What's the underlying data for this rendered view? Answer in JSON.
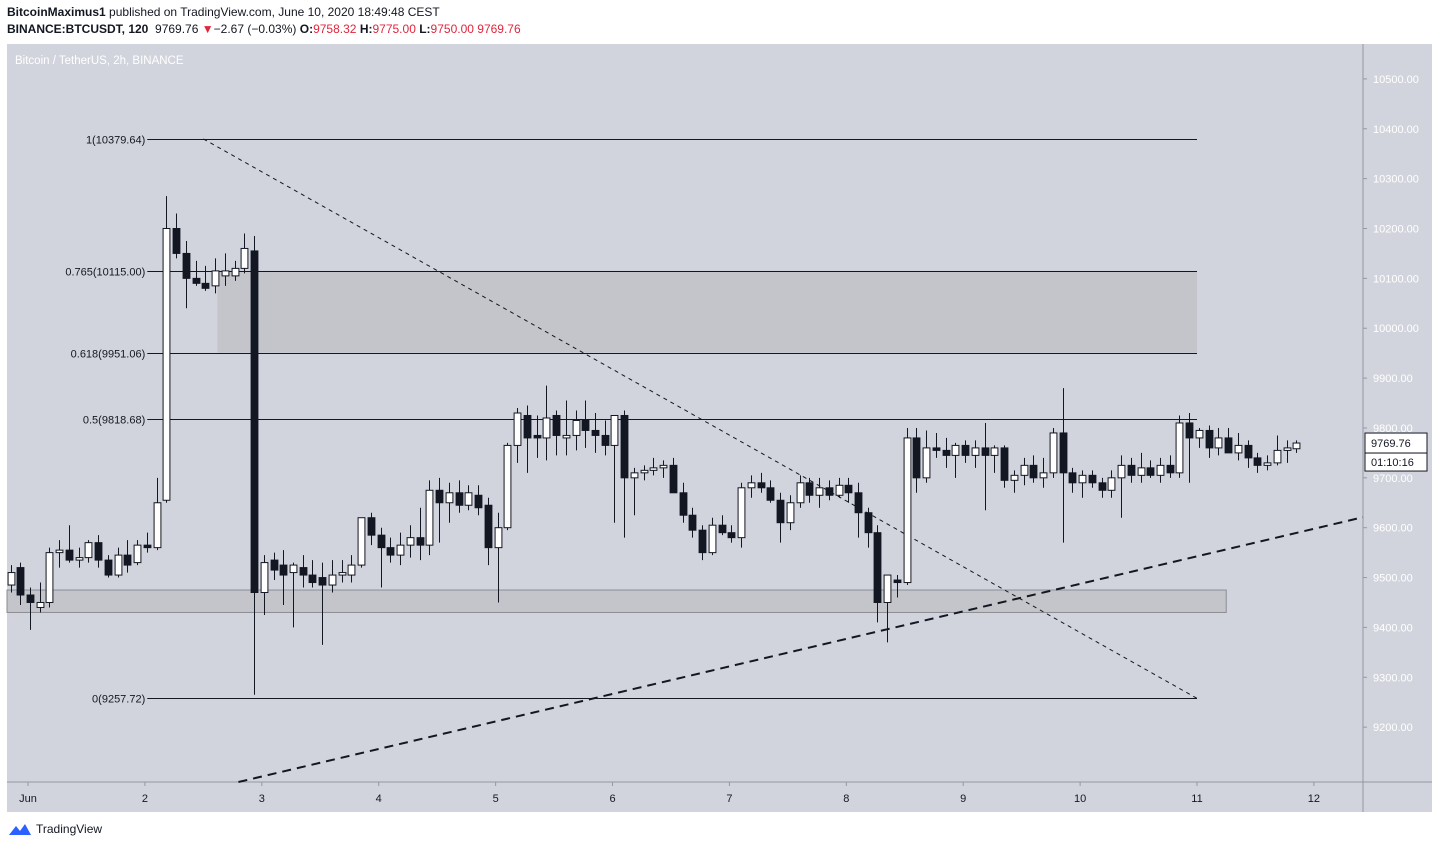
{
  "header": {
    "author": "BitcoinMaximus1",
    "published_text": "published on TradingView.com, June 10, 2020 18:49:48 CEST",
    "symbol": "BINANCE:BTCUSDT, 120",
    "last": "9769.76",
    "change_arrow": "▼",
    "change": "−2.67 (−0.03%)",
    "o_label": "O:",
    "o_value": "9758.32",
    "h_label": "H:",
    "h_value": "9775.00",
    "l_label": "L:",
    "l_value": "9750.00",
    "c_value": "9769.76"
  },
  "footer": {
    "brand": "TradingView"
  },
  "colors": {
    "panel_bg": "#d1d4dc",
    "zone_fill": "#c3c5cb",
    "candle_up_fill": "#ffffff",
    "candle_down_fill": "#131722",
    "price_change_red": "#e0263c",
    "accent_blue": "#2962ff"
  },
  "chart_data": {
    "type": "candlestick",
    "title": "Bitcoin / TetherUS, 2h, BINANCE",
    "price_axis": {
      "range": [
        9090,
        10570
      ],
      "ticks": [
        "10500.00",
        "10400.00",
        "10300.00",
        "10200.00",
        "10100.00",
        "10000.00",
        "9900.00",
        "9800.00",
        "9700.00",
        "9600.00",
        "9500.00",
        "9400.00",
        "9300.00",
        "9200.00"
      ],
      "current_price_label": "9769.76",
      "countdown_label": "01:10:16"
    },
    "time_axis": {
      "range_days": [
        0.82,
        12.42
      ],
      "ticks": [
        {
          "day": 1,
          "label": "Jun"
        },
        {
          "day": 2,
          "label": "2"
        },
        {
          "day": 3,
          "label": "3"
        },
        {
          "day": 4,
          "label": "4"
        },
        {
          "day": 5,
          "label": "5"
        },
        {
          "day": 6,
          "label": "6"
        },
        {
          "day": 7,
          "label": "7"
        },
        {
          "day": 8,
          "label": "8"
        },
        {
          "day": 9,
          "label": "9"
        },
        {
          "day": 10,
          "label": "10"
        },
        {
          "day": 11,
          "label": "11"
        },
        {
          "day": 12,
          "label": "12"
        }
      ]
    },
    "fib_levels": [
      {
        "ratio": "1",
        "value": 10379.64,
        "label": "1(10379.64)"
      },
      {
        "ratio": "0.765",
        "value": 10115.0,
        "label": "0.765(10115.00)"
      },
      {
        "ratio": "0.618",
        "value": 9951.06,
        "label": "0.618(9951.06)"
      },
      {
        "ratio": "0.5",
        "value": 9818.68,
        "label": "0.5(9818.68)"
      },
      {
        "ratio": "0",
        "value": 9257.72,
        "label": "0(9257.72)"
      }
    ],
    "fib_span_days": [
      2.02,
      11.0
    ],
    "resistance_zone": {
      "low": 9951.06,
      "high": 10115.0,
      "days": [
        2.62,
        11.0
      ]
    },
    "support_zone": {
      "low": 9430,
      "high": 9475,
      "days": [
        0.82,
        11.25
      ]
    },
    "diagonal_resistance": {
      "from": {
        "day": 2.5,
        "price": 10379.64
      },
      "to": {
        "day": 11.0,
        "price": 9257.72
      }
    },
    "ascending_support": {
      "from": {
        "day": 2.8,
        "price": 9090
      },
      "to": {
        "day": 12.42,
        "price": 9621
      }
    },
    "candles_2h": [
      {
        "o": 9485,
        "h": 9525,
        "l": 9470,
        "c": 9510
      },
      {
        "o": 9520,
        "h": 9530,
        "l": 9445,
        "c": 9465
      },
      {
        "o": 9465,
        "h": 9480,
        "l": 9395,
        "c": 9450
      },
      {
        "o": 9440,
        "h": 9490,
        "l": 9430,
        "c": 9450
      },
      {
        "o": 9450,
        "h": 9560,
        "l": 9440,
        "c": 9550
      },
      {
        "o": 9550,
        "h": 9575,
        "l": 9520,
        "c": 9555
      },
      {
        "o": 9555,
        "h": 9605,
        "l": 9530,
        "c": 9535
      },
      {
        "o": 9535,
        "h": 9560,
        "l": 9520,
        "c": 9540
      },
      {
        "o": 9540,
        "h": 9575,
        "l": 9530,
        "c": 9570
      },
      {
        "o": 9570,
        "h": 9585,
        "l": 9520,
        "c": 9535
      },
      {
        "o": 9535,
        "h": 9545,
        "l": 9500,
        "c": 9505
      },
      {
        "o": 9505,
        "h": 9560,
        "l": 9500,
        "c": 9545
      },
      {
        "o": 9545,
        "h": 9575,
        "l": 9510,
        "c": 9525
      },
      {
        "o": 9530,
        "h": 9575,
        "l": 9525,
        "c": 9565
      },
      {
        "o": 9565,
        "h": 9590,
        "l": 9550,
        "c": 9560
      },
      {
        "o": 9560,
        "h": 9700,
        "l": 9555,
        "c": 9650
      },
      {
        "o": 9655,
        "h": 10265,
        "l": 9650,
        "c": 10200
      },
      {
        "o": 10200,
        "h": 10230,
        "l": 10140,
        "c": 10150
      },
      {
        "o": 10150,
        "h": 10175,
        "l": 10040,
        "c": 10100
      },
      {
        "o": 10100,
        "h": 10135,
        "l": 10085,
        "c": 10090
      },
      {
        "o": 10090,
        "h": 10125,
        "l": 10075,
        "c": 10080
      },
      {
        "o": 10085,
        "h": 10140,
        "l": 10070,
        "c": 10115
      },
      {
        "o": 10105,
        "h": 10150,
        "l": 10085,
        "c": 10115
      },
      {
        "o": 10105,
        "h": 10135,
        "l": 10095,
        "c": 10120
      },
      {
        "o": 10120,
        "h": 10190,
        "l": 10110,
        "c": 10160
      },
      {
        "o": 10155,
        "h": 10185,
        "l": 9265,
        "c": 9470
      },
      {
        "o": 9470,
        "h": 9545,
        "l": 9425,
        "c": 9530
      },
      {
        "o": 9535,
        "h": 9550,
        "l": 9495,
        "c": 9515
      },
      {
        "o": 9525,
        "h": 9555,
        "l": 9445,
        "c": 9505
      },
      {
        "o": 9510,
        "h": 9530,
        "l": 9400,
        "c": 9525
      },
      {
        "o": 9520,
        "h": 9545,
        "l": 9480,
        "c": 9505
      },
      {
        "o": 9505,
        "h": 9535,
        "l": 9480,
        "c": 9490
      },
      {
        "o": 9500,
        "h": 9530,
        "l": 9365,
        "c": 9485
      },
      {
        "o": 9485,
        "h": 9535,
        "l": 9470,
        "c": 9505
      },
      {
        "o": 9505,
        "h": 9535,
        "l": 9490,
        "c": 9510
      },
      {
        "o": 9505,
        "h": 9545,
        "l": 9490,
        "c": 9525
      },
      {
        "o": 9525,
        "h": 9620,
        "l": 9520,
        "c": 9620
      },
      {
        "o": 9620,
        "h": 9630,
        "l": 9565,
        "c": 9585
      },
      {
        "o": 9585,
        "h": 9600,
        "l": 9480,
        "c": 9560
      },
      {
        "o": 9560,
        "h": 9580,
        "l": 9530,
        "c": 9545
      },
      {
        "o": 9545,
        "h": 9590,
        "l": 9525,
        "c": 9565
      },
      {
        "o": 9565,
        "h": 9605,
        "l": 9540,
        "c": 9580
      },
      {
        "o": 9580,
        "h": 9640,
        "l": 9535,
        "c": 9565
      },
      {
        "o": 9565,
        "h": 9695,
        "l": 9545,
        "c": 9675
      },
      {
        "o": 9675,
        "h": 9700,
        "l": 9570,
        "c": 9650
      },
      {
        "o": 9650,
        "h": 9690,
        "l": 9610,
        "c": 9670
      },
      {
        "o": 9670,
        "h": 9695,
        "l": 9630,
        "c": 9645
      },
      {
        "o": 9645,
        "h": 9685,
        "l": 9635,
        "c": 9670
      },
      {
        "o": 9665,
        "h": 9685,
        "l": 9625,
        "c": 9640
      },
      {
        "o": 9645,
        "h": 9660,
        "l": 9525,
        "c": 9560
      },
      {
        "o": 9560,
        "h": 9630,
        "l": 9450,
        "c": 9600
      },
      {
        "o": 9600,
        "h": 9770,
        "l": 9595,
        "c": 9765
      },
      {
        "o": 9765,
        "h": 9840,
        "l": 9730,
        "c": 9830
      },
      {
        "o": 9825,
        "h": 9845,
        "l": 9710,
        "c": 9780
      },
      {
        "o": 9785,
        "h": 9825,
        "l": 9740,
        "c": 9780
      },
      {
        "o": 9780,
        "h": 9885,
        "l": 9735,
        "c": 9820
      },
      {
        "o": 9825,
        "h": 9835,
        "l": 9745,
        "c": 9785
      },
      {
        "o": 9780,
        "h": 9855,
        "l": 9745,
        "c": 9785
      },
      {
        "o": 9785,
        "h": 9835,
        "l": 9755,
        "c": 9815
      },
      {
        "o": 9815,
        "h": 9855,
        "l": 9760,
        "c": 9795
      },
      {
        "o": 9795,
        "h": 9830,
        "l": 9750,
        "c": 9785
      },
      {
        "o": 9785,
        "h": 9815,
        "l": 9745,
        "c": 9765
      },
      {
        "o": 9765,
        "h": 9825,
        "l": 9610,
        "c": 9825
      },
      {
        "o": 9825,
        "h": 9835,
        "l": 9580,
        "c": 9700
      },
      {
        "o": 9700,
        "h": 9720,
        "l": 9625,
        "c": 9710
      },
      {
        "o": 9710,
        "h": 9725,
        "l": 9695,
        "c": 9715
      },
      {
        "o": 9715,
        "h": 9740,
        "l": 9705,
        "c": 9720
      },
      {
        "o": 9720,
        "h": 9735,
        "l": 9700,
        "c": 9725
      },
      {
        "o": 9725,
        "h": 9740,
        "l": 9680,
        "c": 9670
      },
      {
        "o": 9670,
        "h": 9690,
        "l": 9610,
        "c": 9625
      },
      {
        "o": 9625,
        "h": 9640,
        "l": 9580,
        "c": 9595
      },
      {
        "o": 9595,
        "h": 9605,
        "l": 9535,
        "c": 9550
      },
      {
        "o": 9550,
        "h": 9620,
        "l": 9545,
        "c": 9605
      },
      {
        "o": 9605,
        "h": 9625,
        "l": 9585,
        "c": 9590
      },
      {
        "o": 9590,
        "h": 9605,
        "l": 9570,
        "c": 9580
      },
      {
        "o": 9580,
        "h": 9690,
        "l": 9560,
        "c": 9680
      },
      {
        "o": 9680,
        "h": 9705,
        "l": 9660,
        "c": 9690
      },
      {
        "o": 9690,
        "h": 9710,
        "l": 9670,
        "c": 9680
      },
      {
        "o": 9680,
        "h": 9695,
        "l": 9650,
        "c": 9655
      },
      {
        "o": 9655,
        "h": 9670,
        "l": 9570,
        "c": 9610
      },
      {
        "o": 9610,
        "h": 9665,
        "l": 9595,
        "c": 9650
      },
      {
        "o": 9650,
        "h": 9705,
        "l": 9640,
        "c": 9690
      },
      {
        "o": 9690,
        "h": 9700,
        "l": 9650,
        "c": 9665
      },
      {
        "o": 9665,
        "h": 9700,
        "l": 9640,
        "c": 9680
      },
      {
        "o": 9680,
        "h": 9695,
        "l": 9655,
        "c": 9665
      },
      {
        "o": 9665,
        "h": 9700,
        "l": 9660,
        "c": 9685
      },
      {
        "o": 9685,
        "h": 9700,
        "l": 9650,
        "c": 9670
      },
      {
        "o": 9670,
        "h": 9690,
        "l": 9580,
        "c": 9630
      },
      {
        "o": 9630,
        "h": 9640,
        "l": 9560,
        "c": 9590
      },
      {
        "o": 9590,
        "h": 9605,
        "l": 9410,
        "c": 9450
      },
      {
        "o": 9450,
        "h": 9505,
        "l": 9370,
        "c": 9505
      },
      {
        "o": 9495,
        "h": 9505,
        "l": 9460,
        "c": 9490
      },
      {
        "o": 9490,
        "h": 9800,
        "l": 9485,
        "c": 9780
      },
      {
        "o": 9780,
        "h": 9800,
        "l": 9670,
        "c": 9700
      },
      {
        "o": 9700,
        "h": 9795,
        "l": 9690,
        "c": 9760
      },
      {
        "o": 9760,
        "h": 9790,
        "l": 9740,
        "c": 9755
      },
      {
        "o": 9755,
        "h": 9780,
        "l": 9720,
        "c": 9745
      },
      {
        "o": 9745,
        "h": 9770,
        "l": 9700,
        "c": 9765
      },
      {
        "o": 9765,
        "h": 9775,
        "l": 9730,
        "c": 9745
      },
      {
        "o": 9745,
        "h": 9775,
        "l": 9720,
        "c": 9760
      },
      {
        "o": 9760,
        "h": 9810,
        "l": 9635,
        "c": 9745
      },
      {
        "o": 9745,
        "h": 9765,
        "l": 9710,
        "c": 9760
      },
      {
        "o": 9760,
        "h": 9765,
        "l": 9680,
        "c": 9695
      },
      {
        "o": 9695,
        "h": 9715,
        "l": 9670,
        "c": 9705
      },
      {
        "o": 9705,
        "h": 9740,
        "l": 9685,
        "c": 9725
      },
      {
        "o": 9725,
        "h": 9745,
        "l": 9690,
        "c": 9700
      },
      {
        "o": 9700,
        "h": 9740,
        "l": 9680,
        "c": 9710
      },
      {
        "o": 9710,
        "h": 9800,
        "l": 9700,
        "c": 9790
      },
      {
        "o": 9790,
        "h": 9880,
        "l": 9570,
        "c": 9710
      },
      {
        "o": 9710,
        "h": 9720,
        "l": 9670,
        "c": 9690
      },
      {
        "o": 9690,
        "h": 9715,
        "l": 9660,
        "c": 9705
      },
      {
        "o": 9705,
        "h": 9715,
        "l": 9680,
        "c": 9690
      },
      {
        "o": 9690,
        "h": 9700,
        "l": 9660,
        "c": 9675
      },
      {
        "o": 9675,
        "h": 9715,
        "l": 9660,
        "c": 9700
      },
      {
        "o": 9700,
        "h": 9745,
        "l": 9620,
        "c": 9725
      },
      {
        "o": 9725,
        "h": 9740,
        "l": 9690,
        "c": 9705
      },
      {
        "o": 9705,
        "h": 9750,
        "l": 9690,
        "c": 9720
      },
      {
        "o": 9720,
        "h": 9735,
        "l": 9700,
        "c": 9705
      },
      {
        "o": 9705,
        "h": 9740,
        "l": 9690,
        "c": 9725
      },
      {
        "o": 9725,
        "h": 9745,
        "l": 9700,
        "c": 9710
      },
      {
        "o": 9710,
        "h": 9825,
        "l": 9700,
        "c": 9810
      },
      {
        "o": 9810,
        "h": 9830,
        "l": 9690,
        "c": 9780
      },
      {
        "o": 9780,
        "h": 9800,
        "l": 9760,
        "c": 9795
      },
      {
        "o": 9795,
        "h": 9805,
        "l": 9740,
        "c": 9760
      },
      {
        "o": 9760,
        "h": 9800,
        "l": 9745,
        "c": 9780
      },
      {
        "o": 9780,
        "h": 9800,
        "l": 9750,
        "c": 9750
      },
      {
        "o": 9750,
        "h": 9790,
        "l": 9735,
        "c": 9765
      },
      {
        "o": 9765,
        "h": 9775,
        "l": 9720,
        "c": 9740
      },
      {
        "o": 9740,
        "h": 9750,
        "l": 9710,
        "c": 9725
      },
      {
        "o": 9725,
        "h": 9745,
        "l": 9715,
        "c": 9730
      },
      {
        "o": 9730,
        "h": 9785,
        "l": 9725,
        "c": 9755
      },
      {
        "o": 9755,
        "h": 9775,
        "l": 9730,
        "c": 9760
      },
      {
        "o": 9758.32,
        "h": 9775,
        "l": 9750,
        "c": 9769.76
      }
    ]
  }
}
